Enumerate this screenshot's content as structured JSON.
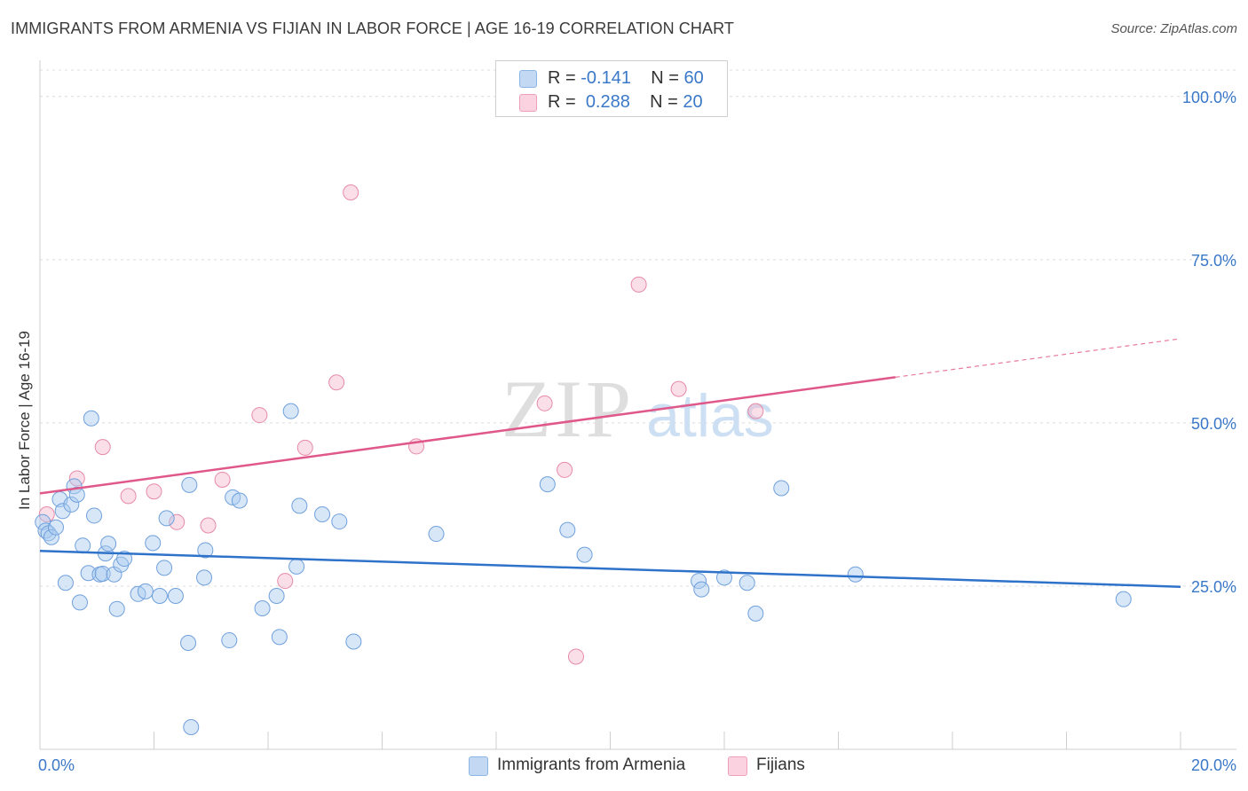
{
  "title": "IMMIGRANTS FROM ARMENIA VS FIJIAN IN LABOR FORCE | AGE 16-19 CORRELATION CHART",
  "source": "Source: ZipAtlas.com",
  "watermark": {
    "zip": "ZIP",
    "atlas": "atlas"
  },
  "legend_top": [
    {
      "r_label": "R =",
      "r_value": "-0.141",
      "n_label": "N =",
      "n_value": "60",
      "color": "#a9c9ef"
    },
    {
      "r_label": "R =",
      "r_value": "0.288",
      "n_label": "N =",
      "n_value": "20",
      "color": "#f6b8cb"
    }
  ],
  "legend_bottom": [
    {
      "label": "Immigrants from Armenia",
      "color": "#a9c9ef"
    },
    {
      "label": "Fijians",
      "color": "#f6b8cb"
    }
  ],
  "chart_data": {
    "type": "scatter",
    "title": "IMMIGRANTS FROM ARMENIA VS FIJIAN IN LABOR FORCE | AGE 16-19 CORRELATION CHART",
    "xlabel": "",
    "ylabel": "In Labor Force | Age 16-19",
    "xlim": [
      0,
      20
    ],
    "ylim": [
      0,
      105
    ],
    "x_tick_labels": [
      "0.0%",
      "20.0%"
    ],
    "y_ticks": [
      25,
      50,
      75,
      100
    ],
    "y_tick_labels": [
      "25.0%",
      "50.0%",
      "75.0%",
      "100.0%"
    ],
    "grid": true,
    "legend_position": "top-center",
    "series": [
      {
        "name": "Immigrants from Armenia",
        "color": "#a9c9ef",
        "stroke": "#6fa0dc",
        "trend_color": "#2f72c9",
        "trend": {
          "x": [
            0,
            20
          ],
          "y": [
            30.4,
            24.9
          ]
        },
        "points": [
          [
            0.05,
            34.8
          ],
          [
            0.1,
            33.5
          ],
          [
            0.15,
            33.1
          ],
          [
            0.2,
            32.5
          ],
          [
            0.28,
            34.0
          ],
          [
            0.35,
            38.3
          ],
          [
            0.4,
            36.5
          ],
          [
            0.45,
            25.5
          ],
          [
            0.55,
            37.5
          ],
          [
            0.6,
            40.3
          ],
          [
            0.65,
            39.0
          ],
          [
            0.7,
            22.5
          ],
          [
            0.75,
            31.2
          ],
          [
            0.85,
            27.0
          ],
          [
            0.9,
            50.7
          ],
          [
            0.95,
            35.8
          ],
          [
            1.05,
            26.8
          ],
          [
            1.1,
            26.9
          ],
          [
            1.15,
            30.0
          ],
          [
            1.2,
            31.5
          ],
          [
            1.3,
            26.8
          ],
          [
            1.35,
            21.5
          ],
          [
            1.42,
            28.3
          ],
          [
            1.48,
            29.2
          ],
          [
            1.72,
            23.8
          ],
          [
            1.85,
            24.2
          ],
          [
            1.98,
            31.6
          ],
          [
            2.1,
            23.5
          ],
          [
            2.18,
            27.8
          ],
          [
            2.22,
            35.4
          ],
          [
            2.38,
            23.5
          ],
          [
            2.6,
            16.3
          ],
          [
            2.62,
            40.5
          ],
          [
            2.65,
            3.4
          ],
          [
            2.88,
            26.3
          ],
          [
            2.9,
            30.5
          ],
          [
            3.32,
            16.7
          ],
          [
            3.38,
            38.6
          ],
          [
            3.5,
            38.1
          ],
          [
            3.9,
            21.6
          ],
          [
            4.15,
            23.5
          ],
          [
            4.2,
            17.2
          ],
          [
            4.4,
            51.8
          ],
          [
            4.5,
            28.0
          ],
          [
            4.55,
            37.3
          ],
          [
            4.95,
            36.0
          ],
          [
            5.25,
            34.9
          ],
          [
            5.5,
            16.5
          ],
          [
            6.95,
            33.0
          ],
          [
            8.9,
            40.6
          ],
          [
            9.25,
            33.6
          ],
          [
            9.55,
            29.8
          ],
          [
            11.55,
            25.8
          ],
          [
            11.6,
            24.5
          ],
          [
            12.0,
            26.3
          ],
          [
            12.4,
            25.5
          ],
          [
            12.55,
            20.8
          ],
          [
            13.0,
            40.0
          ],
          [
            14.3,
            26.8
          ],
          [
            19.0,
            23.0
          ]
        ]
      },
      {
        "name": "Fijians",
        "color": "#f6b8cb",
        "stroke": "#e68aa8",
        "trend_color": "#e0588a",
        "trend": {
          "x": [
            0,
            15
          ],
          "y": [
            39.2,
            57.0
          ]
        },
        "trend_dashed": {
          "x": [
            15,
            20
          ],
          "y": [
            57.0,
            62.9
          ]
        },
        "points": [
          [
            0.12,
            36.0
          ],
          [
            0.65,
            41.5
          ],
          [
            1.1,
            46.3
          ],
          [
            1.55,
            38.8
          ],
          [
            2.0,
            39.5
          ],
          [
            2.4,
            34.8
          ],
          [
            2.95,
            34.3
          ],
          [
            3.2,
            41.3
          ],
          [
            3.85,
            51.2
          ],
          [
            4.3,
            25.8
          ],
          [
            4.65,
            46.2
          ],
          [
            5.2,
            56.2
          ],
          [
            5.45,
            85.3
          ],
          [
            6.6,
            46.4
          ],
          [
            8.85,
            53.0
          ],
          [
            9.2,
            42.8
          ],
          [
            9.4,
            14.2
          ],
          [
            10.5,
            71.2
          ],
          [
            11.2,
            55.2
          ],
          [
            12.55,
            51.8
          ]
        ]
      }
    ]
  }
}
